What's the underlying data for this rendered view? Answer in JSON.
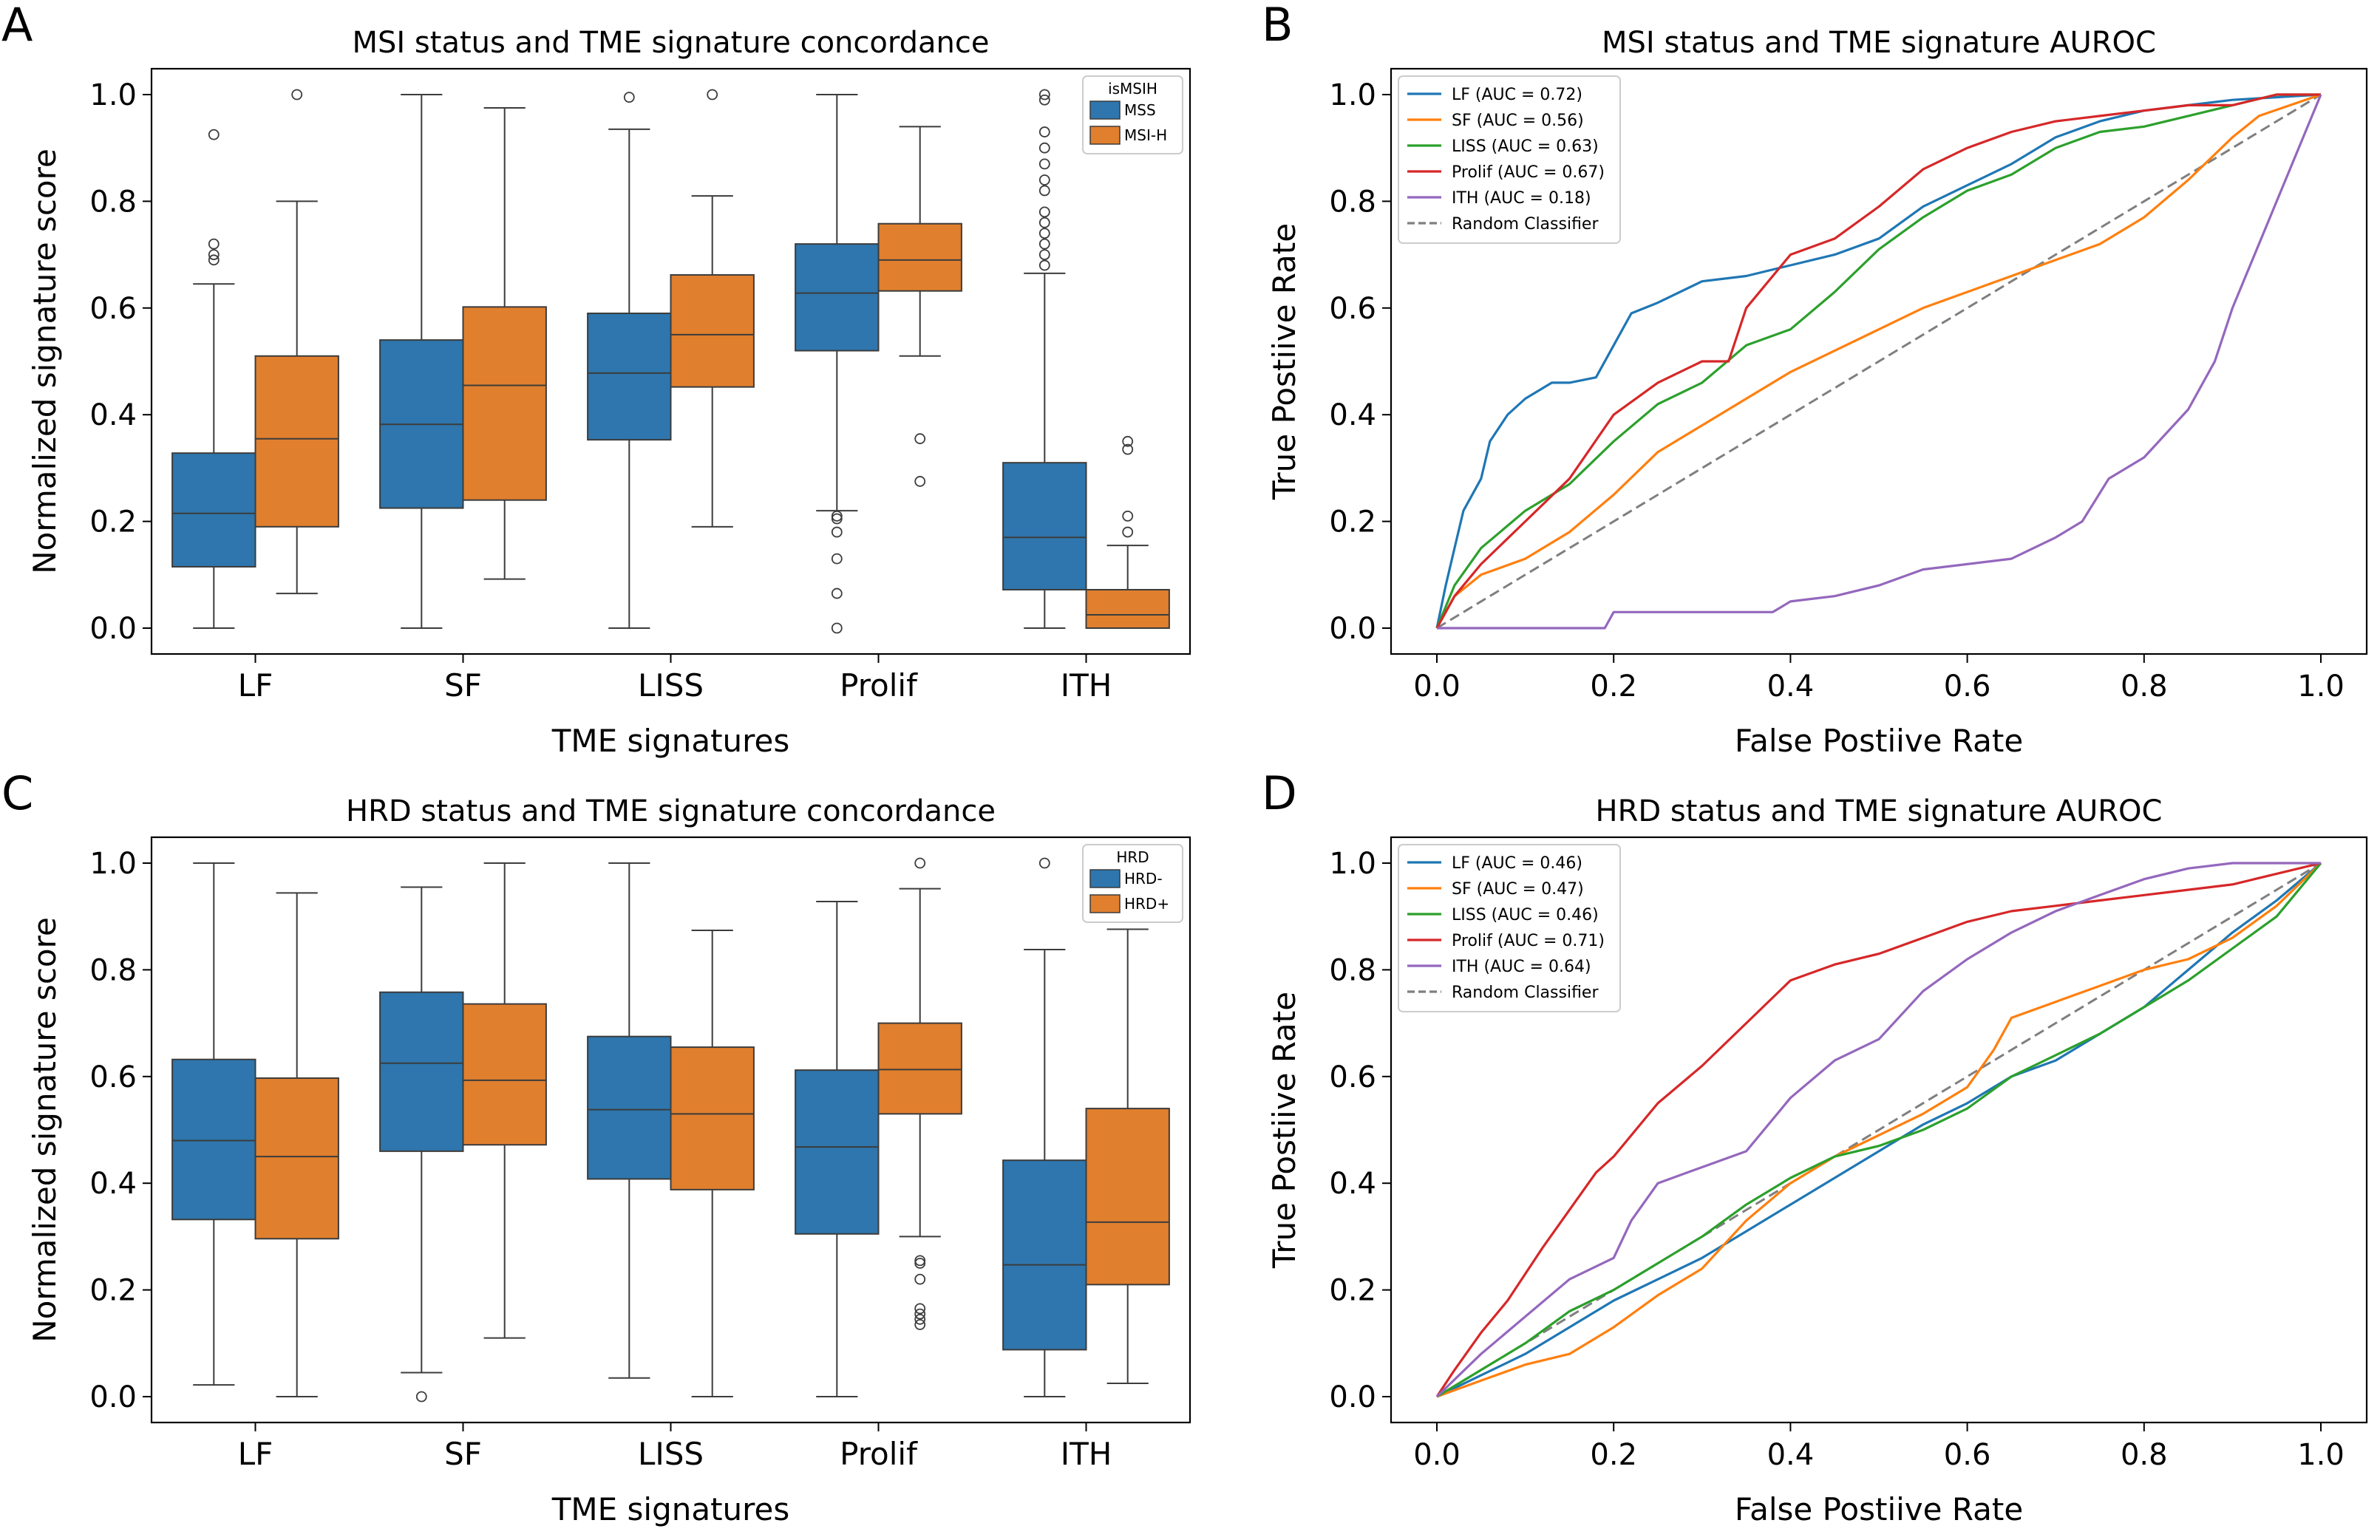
{
  "colors": {
    "mss": "#2e76ad",
    "msih": "#e07f2e",
    "roc_blue": "#1f77b4",
    "roc_orange": "#ff7f0e",
    "roc_green": "#2ca02c",
    "roc_red": "#d62728",
    "roc_purple": "#9467bd",
    "random": "#7f7f7f"
  },
  "chart_data": [
    {
      "panel": "A",
      "type": "box",
      "title": "MSI status and TME signature concordance",
      "xlabel": "TME signatures",
      "ylabel": "Normalized signature score",
      "ylim": [
        0,
        1
      ],
      "yticks": [
        "0.0",
        "0.2",
        "0.4",
        "0.6",
        "0.8",
        "1.0"
      ],
      "categories": [
        "LF",
        "SF",
        "LISS",
        "Prolif",
        "ITH"
      ],
      "legend_title": "isMSIH",
      "legend_position": "top-right",
      "series": [
        {
          "name": "MSS",
          "boxes": [
            {
              "min": 0.0,
              "q1": 0.115,
              "median": 0.215,
              "q3": 0.328,
              "max": 0.645,
              "outliers": [
                0.69,
                0.7,
                0.72,
                0.925
              ]
            },
            {
              "min": 0.0,
              "q1": 0.225,
              "median": 0.382,
              "q3": 0.54,
              "max": 1.0,
              "outliers": []
            },
            {
              "min": 0.0,
              "q1": 0.353,
              "median": 0.478,
              "q3": 0.59,
              "max": 0.935,
              "outliers": [
                0.995
              ]
            },
            {
              "min": 0.22,
              "q1": 0.52,
              "median": 0.628,
              "q3": 0.72,
              "max": 1.0,
              "outliers": [
                0.0,
                0.065,
                0.13,
                0.18,
                0.205,
                0.21
              ]
            },
            {
              "min": 0.0,
              "q1": 0.072,
              "median": 0.17,
              "q3": 0.31,
              "max": 0.665,
              "outliers": [
                0.68,
                0.7,
                0.72,
                0.74,
                0.76,
                0.78,
                0.82,
                0.84,
                0.87,
                0.9,
                0.93,
                0.99,
                1.0
              ]
            }
          ]
        },
        {
          "name": "MSI-H",
          "boxes": [
            {
              "min": 0.065,
              "q1": 0.19,
              "median": 0.355,
              "q3": 0.51,
              "max": 0.8,
              "outliers": [
                1.0
              ]
            },
            {
              "min": 0.092,
              "q1": 0.24,
              "median": 0.455,
              "q3": 0.602,
              "max": 0.975,
              "outliers": []
            },
            {
              "min": 0.19,
              "q1": 0.452,
              "median": 0.55,
              "q3": 0.662,
              "max": 0.81,
              "outliers": [
                1.0
              ]
            },
            {
              "min": 0.51,
              "q1": 0.632,
              "median": 0.69,
              "q3": 0.758,
              "max": 0.94,
              "outliers": [
                0.275,
                0.355
              ]
            },
            {
              "min": 0.0,
              "q1": 0.0,
              "median": 0.025,
              "q3": 0.072,
              "max": 0.155,
              "outliers": [
                0.18,
                0.21,
                0.335,
                0.35
              ]
            }
          ]
        }
      ]
    },
    {
      "panel": "B",
      "type": "line",
      "title": "MSI status and TME signature AUROC",
      "xlabel": "False Postiive Rate",
      "ylabel": "True Postiive Rate",
      "xlim": [
        0,
        1
      ],
      "ylim": [
        0,
        1
      ],
      "ticks": [
        "0.0",
        "0.2",
        "0.4",
        "0.6",
        "0.8",
        "1.0"
      ],
      "legend_position": "top-left",
      "series": [
        {
          "name": "LF (AUC = 0.72)",
          "color_key": "roc_blue",
          "x": [
            0,
            0.01,
            0.02,
            0.03,
            0.05,
            0.06,
            0.08,
            0.1,
            0.13,
            0.15,
            0.18,
            0.2,
            0.22,
            0.25,
            0.3,
            0.35,
            0.4,
            0.45,
            0.5,
            0.55,
            0.6,
            0.65,
            0.7,
            0.75,
            0.8,
            0.85,
            0.9,
            1.0
          ],
          "y": [
            0,
            0.08,
            0.15,
            0.22,
            0.28,
            0.35,
            0.4,
            0.43,
            0.46,
            0.46,
            0.47,
            0.53,
            0.59,
            0.61,
            0.65,
            0.66,
            0.68,
            0.7,
            0.73,
            0.79,
            0.83,
            0.87,
            0.92,
            0.95,
            0.97,
            0.98,
            0.99,
            1.0
          ]
        },
        {
          "name": "SF (AUC = 0.56)",
          "color_key": "roc_orange",
          "x": [
            0,
            0.02,
            0.05,
            0.1,
            0.15,
            0.2,
            0.25,
            0.3,
            0.35,
            0.4,
            0.45,
            0.5,
            0.55,
            0.6,
            0.65,
            0.7,
            0.75,
            0.8,
            0.85,
            0.9,
            0.93,
            1.0
          ],
          "y": [
            0,
            0.06,
            0.1,
            0.13,
            0.18,
            0.25,
            0.33,
            0.38,
            0.43,
            0.48,
            0.52,
            0.56,
            0.6,
            0.63,
            0.66,
            0.69,
            0.72,
            0.77,
            0.84,
            0.92,
            0.96,
            1.0
          ]
        },
        {
          "name": "LISS (AUC = 0.63)",
          "color_key": "roc_green",
          "x": [
            0,
            0.02,
            0.05,
            0.1,
            0.15,
            0.2,
            0.25,
            0.3,
            0.35,
            0.4,
            0.45,
            0.5,
            0.55,
            0.6,
            0.65,
            0.7,
            0.75,
            0.8,
            0.85,
            0.9,
            0.95,
            1.0
          ],
          "y": [
            0,
            0.08,
            0.15,
            0.22,
            0.27,
            0.35,
            0.42,
            0.46,
            0.53,
            0.56,
            0.63,
            0.71,
            0.77,
            0.82,
            0.85,
            0.9,
            0.93,
            0.94,
            0.96,
            0.98,
            1.0,
            1.0
          ]
        },
        {
          "name": "Prolif (AUC = 0.67)",
          "color_key": "roc_red",
          "x": [
            0,
            0.02,
            0.05,
            0.1,
            0.15,
            0.2,
            0.25,
            0.3,
            0.33,
            0.35,
            0.4,
            0.45,
            0.5,
            0.55,
            0.6,
            0.65,
            0.7,
            0.75,
            0.8,
            0.85,
            0.9,
            0.95,
            1.0
          ],
          "y": [
            0,
            0.06,
            0.12,
            0.2,
            0.28,
            0.4,
            0.46,
            0.5,
            0.5,
            0.6,
            0.7,
            0.73,
            0.79,
            0.86,
            0.9,
            0.93,
            0.95,
            0.96,
            0.97,
            0.98,
            0.98,
            1.0,
            1.0
          ]
        },
        {
          "name": "ITH (AUC = 0.18)",
          "color_key": "roc_purple",
          "x": [
            0,
            0.1,
            0.19,
            0.2,
            0.3,
            0.38,
            0.4,
            0.45,
            0.5,
            0.55,
            0.6,
            0.65,
            0.7,
            0.73,
            0.76,
            0.8,
            0.85,
            0.88,
            0.9,
            0.95,
            1.0
          ],
          "y": [
            0,
            0.0,
            0.0,
            0.03,
            0.03,
            0.03,
            0.05,
            0.06,
            0.08,
            0.11,
            0.12,
            0.13,
            0.17,
            0.2,
            0.28,
            0.32,
            0.41,
            0.5,
            0.6,
            0.8,
            1.0
          ]
        },
        {
          "name": "Random Classifier",
          "color_key": "random",
          "dashed": true,
          "x": [
            0,
            1
          ],
          "y": [
            0,
            1
          ]
        }
      ]
    },
    {
      "panel": "C",
      "type": "box",
      "title": "HRD status and TME signature concordance",
      "xlabel": "TME signatures",
      "ylabel": "Normalized signature score",
      "ylim": [
        0,
        1
      ],
      "yticks": [
        "0.0",
        "0.2",
        "0.4",
        "0.6",
        "0.8",
        "1.0"
      ],
      "categories": [
        "LF",
        "SF",
        "LISS",
        "Prolif",
        "ITH"
      ],
      "legend_title": "HRD",
      "legend_position": "top-right",
      "series": [
        {
          "name": "HRD-",
          "boxes": [
            {
              "min": 0.022,
              "q1": 0.332,
              "median": 0.48,
              "q3": 0.632,
              "max": 1.0,
              "outliers": []
            },
            {
              "min": 0.045,
              "q1": 0.46,
              "median": 0.625,
              "q3": 0.758,
              "max": 0.955,
              "outliers": [
                0.0
              ]
            },
            {
              "min": 0.035,
              "q1": 0.408,
              "median": 0.538,
              "q3": 0.675,
              "max": 1.0,
              "outliers": []
            },
            {
              "min": 0.0,
              "q1": 0.305,
              "median": 0.468,
              "q3": 0.612,
              "max": 0.928,
              "outliers": []
            },
            {
              "min": 0.0,
              "q1": 0.088,
              "median": 0.247,
              "q3": 0.443,
              "max": 0.838,
              "outliers": [
                1.0
              ]
            }
          ]
        },
        {
          "name": "HRD+",
          "boxes": [
            {
              "min": 0.0,
              "q1": 0.296,
              "median": 0.45,
              "q3": 0.597,
              "max": 0.944,
              "outliers": []
            },
            {
              "min": 0.11,
              "q1": 0.472,
              "median": 0.593,
              "q3": 0.736,
              "max": 1.0,
              "outliers": []
            },
            {
              "min": 0.0,
              "q1": 0.388,
              "median": 0.53,
              "q3": 0.655,
              "max": 0.874,
              "outliers": []
            },
            {
              "min": 0.3,
              "q1": 0.53,
              "median": 0.613,
              "q3": 0.7,
              "max": 0.952,
              "outliers": [
                0.135,
                0.145,
                0.155,
                0.165,
                0.22,
                0.25,
                0.255,
                1.0
              ]
            },
            {
              "min": 0.025,
              "q1": 0.21,
              "median": 0.327,
              "q3": 0.54,
              "max": 0.876,
              "outliers": []
            }
          ]
        }
      ]
    },
    {
      "panel": "D",
      "type": "line",
      "title": "HRD status and TME signature AUROC",
      "xlabel": "False Postiive Rate",
      "ylabel": "True Postiive Rate",
      "xlim": [
        0,
        1
      ],
      "ylim": [
        0,
        1
      ],
      "ticks": [
        "0.0",
        "0.2",
        "0.4",
        "0.6",
        "0.8",
        "1.0"
      ],
      "legend_position": "top-left",
      "series": [
        {
          "name": "LF (AUC = 0.46)",
          "color_key": "roc_blue",
          "x": [
            0,
            0.05,
            0.1,
            0.15,
            0.2,
            0.25,
            0.3,
            0.35,
            0.4,
            0.45,
            0.5,
            0.55,
            0.6,
            0.65,
            0.7,
            0.75,
            0.8,
            0.85,
            0.9,
            0.95,
            1.0
          ],
          "y": [
            0,
            0.04,
            0.08,
            0.13,
            0.18,
            0.22,
            0.26,
            0.31,
            0.36,
            0.41,
            0.46,
            0.51,
            0.55,
            0.6,
            0.63,
            0.68,
            0.73,
            0.8,
            0.87,
            0.93,
            1.0
          ]
        },
        {
          "name": "SF (AUC = 0.47)",
          "color_key": "roc_orange",
          "x": [
            0,
            0.05,
            0.1,
            0.15,
            0.2,
            0.25,
            0.3,
            0.35,
            0.4,
            0.45,
            0.5,
            0.55,
            0.6,
            0.63,
            0.65,
            0.7,
            0.75,
            0.8,
            0.85,
            0.9,
            0.95,
            1.0
          ],
          "y": [
            0,
            0.03,
            0.06,
            0.08,
            0.13,
            0.19,
            0.24,
            0.33,
            0.4,
            0.45,
            0.49,
            0.53,
            0.58,
            0.65,
            0.71,
            0.74,
            0.77,
            0.8,
            0.82,
            0.86,
            0.92,
            1.0
          ]
        },
        {
          "name": "LISS (AUC = 0.46)",
          "color_key": "roc_green",
          "x": [
            0,
            0.05,
            0.1,
            0.15,
            0.2,
            0.25,
            0.3,
            0.35,
            0.4,
            0.45,
            0.5,
            0.55,
            0.6,
            0.65,
            0.7,
            0.75,
            0.8,
            0.85,
            0.9,
            0.95,
            1.0
          ],
          "y": [
            0,
            0.05,
            0.1,
            0.16,
            0.2,
            0.25,
            0.3,
            0.36,
            0.41,
            0.45,
            0.47,
            0.5,
            0.54,
            0.6,
            0.64,
            0.68,
            0.73,
            0.78,
            0.84,
            0.9,
            1.0
          ]
        },
        {
          "name": "Prolif (AUC = 0.71)",
          "color_key": "roc_red",
          "x": [
            0,
            0.02,
            0.05,
            0.08,
            0.1,
            0.12,
            0.15,
            0.18,
            0.2,
            0.25,
            0.3,
            0.35,
            0.4,
            0.45,
            0.5,
            0.55,
            0.6,
            0.65,
            0.7,
            0.75,
            0.8,
            0.85,
            0.9,
            0.95,
            1.0
          ],
          "y": [
            0,
            0.05,
            0.12,
            0.18,
            0.23,
            0.28,
            0.35,
            0.42,
            0.45,
            0.55,
            0.62,
            0.7,
            0.78,
            0.81,
            0.83,
            0.86,
            0.89,
            0.91,
            0.92,
            0.93,
            0.94,
            0.95,
            0.96,
            0.98,
            1.0
          ]
        },
        {
          "name": "ITH (AUC = 0.64)",
          "color_key": "roc_purple",
          "x": [
            0,
            0.05,
            0.1,
            0.15,
            0.2,
            0.22,
            0.25,
            0.3,
            0.35,
            0.4,
            0.45,
            0.5,
            0.55,
            0.6,
            0.65,
            0.7,
            0.75,
            0.8,
            0.85,
            0.9,
            0.95,
            1.0
          ],
          "y": [
            0,
            0.08,
            0.15,
            0.22,
            0.26,
            0.33,
            0.4,
            0.43,
            0.46,
            0.56,
            0.63,
            0.67,
            0.76,
            0.82,
            0.87,
            0.91,
            0.94,
            0.97,
            0.99,
            1.0,
            1.0,
            1.0
          ]
        },
        {
          "name": "Random Classifier",
          "color_key": "random",
          "dashed": true,
          "x": [
            0,
            1
          ],
          "y": [
            0,
            1
          ]
        }
      ]
    }
  ]
}
